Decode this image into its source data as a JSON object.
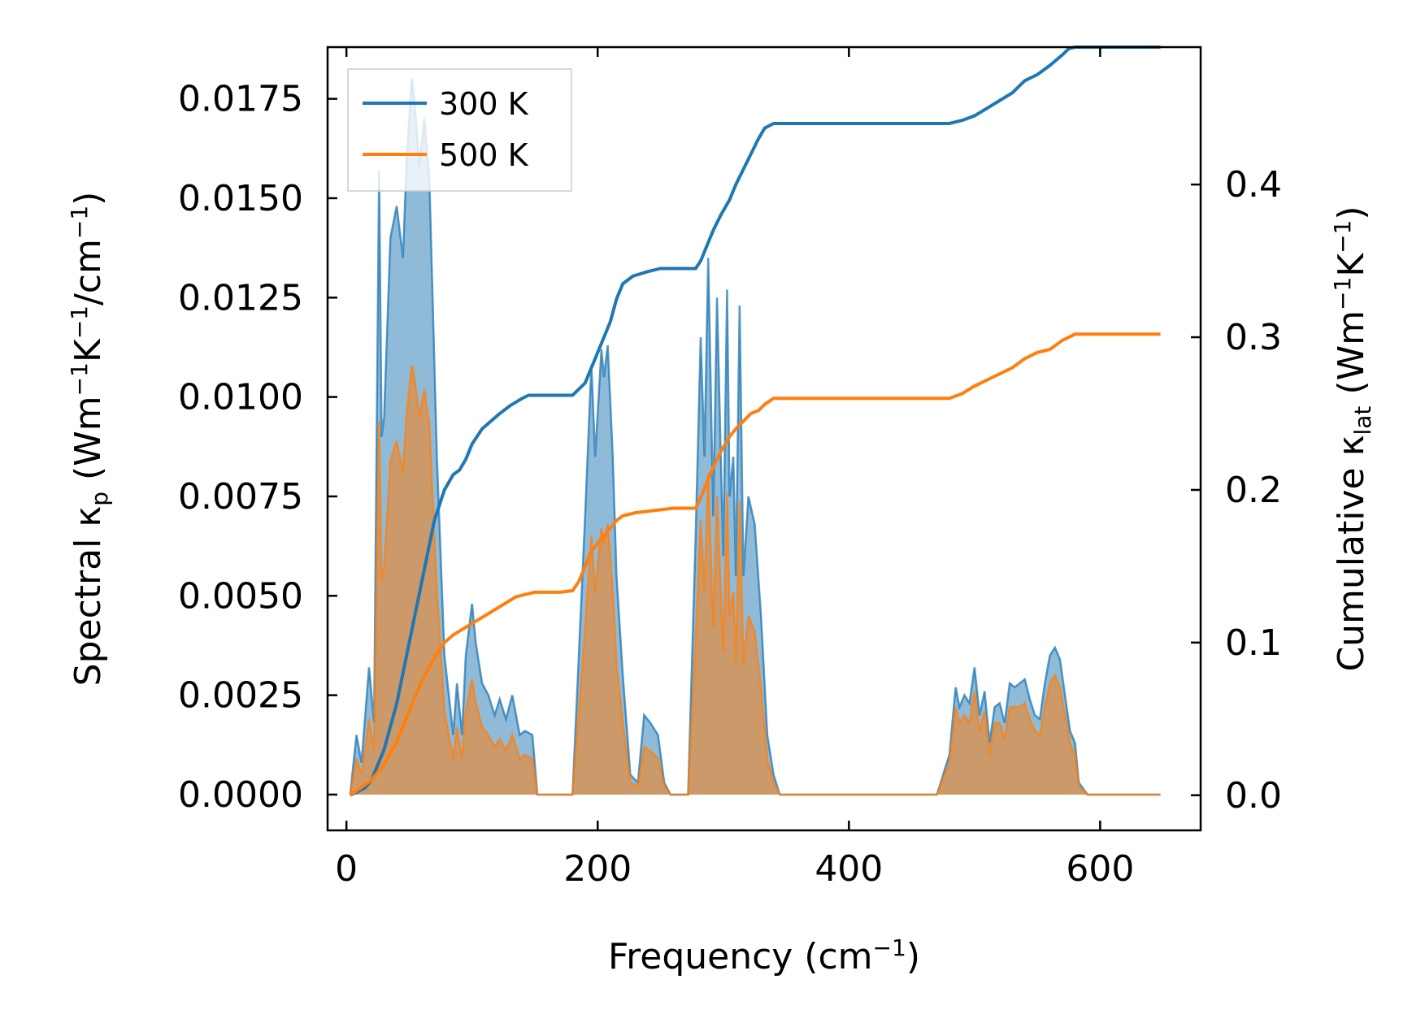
{
  "chart_data": {
    "type": "line",
    "x_axis": {
      "label": "Frequency (cm",
      "label_sup": "−1",
      "label_end": ")",
      "lim": [
        -15,
        680
      ],
      "ticks": [
        0,
        200,
        400,
        600
      ],
      "tick_labels": [
        "0",
        "200",
        "400",
        "600"
      ]
    },
    "y_left": {
      "label_parts": [
        {
          "t": "Spectral κ"
        },
        {
          "t": "p",
          "s": "sub"
        },
        {
          "t": " (Wm"
        },
        {
          "t": "−1",
          "s": "sup"
        },
        {
          "t": "K"
        },
        {
          "t": "−1",
          "s": "sup"
        },
        {
          "t": "/cm"
        },
        {
          "t": "−1",
          "s": "sup"
        },
        {
          "t": ")"
        }
      ],
      "lim": [
        -0.0009,
        0.0188
      ],
      "ticks": [
        0,
        0.0025,
        0.005,
        0.0075,
        0.01,
        0.0125,
        0.015,
        0.0175
      ],
      "tick_labels": [
        "0.0000",
        "0.0025",
        "0.0050",
        "0.0075",
        "0.0100",
        "0.0125",
        "0.0150",
        "0.0175"
      ]
    },
    "y_right": {
      "label_parts": [
        {
          "t": "Cumulative κ"
        },
        {
          "t": "lat",
          "s": "sub"
        },
        {
          "t": " (Wm"
        },
        {
          "t": "−1",
          "s": "sup"
        },
        {
          "t": "K"
        },
        {
          "t": "−1",
          "s": "sup"
        },
        {
          "t": ")"
        }
      ],
      "lim": [
        -0.023,
        0.49
      ],
      "ticks": [
        0,
        0.1,
        0.2,
        0.3,
        0.4
      ],
      "tick_labels": [
        "0.0",
        "0.1",
        "0.2",
        "0.3",
        "0.4"
      ]
    },
    "legend": {
      "position": "top-left",
      "entries": [
        "300 K",
        "500 K"
      ]
    },
    "series": [
      {
        "name": "300 K",
        "color": "#1f77b4",
        "spectral": {
          "x": [
            3,
            8,
            12,
            18,
            22,
            26,
            28,
            30,
            35,
            40,
            45,
            48,
            52,
            54,
            58,
            62,
            66,
            72,
            78,
            85,
            88,
            92,
            95,
            100,
            103,
            108,
            113,
            118,
            122,
            127,
            132,
            138,
            142,
            148,
            152,
            160,
            170,
            180,
            185,
            190,
            195,
            198,
            203,
            205,
            208,
            212,
            215,
            220,
            226,
            232,
            237,
            242,
            248,
            253,
            258,
            262,
            267,
            272,
            278,
            282,
            285,
            288,
            292,
            295,
            298,
            300,
            303,
            305,
            308,
            310,
            313,
            316,
            320,
            325,
            330,
            335,
            340,
            345,
            350,
            360,
            400,
            450,
            470,
            475,
            480,
            485,
            488,
            492,
            496,
            500,
            504,
            508,
            512,
            516,
            520,
            524,
            528,
            532,
            536,
            540,
            544,
            548,
            552,
            556,
            560,
            564,
            568,
            572,
            576,
            580,
            583,
            590,
            640,
            648
          ],
          "y": [
            0,
            0.0015,
            0.0008,
            0.0032,
            0.0018,
            0.0157,
            0.009,
            0.0095,
            0.014,
            0.0148,
            0.0135,
            0.016,
            0.018,
            0.0175,
            0.0158,
            0.017,
            0.0155,
            0.0085,
            0.0035,
            0.0015,
            0.0028,
            0.0015,
            0.0035,
            0.0048,
            0.0038,
            0.0028,
            0.0025,
            0.002,
            0.0024,
            0.0019,
            0.0025,
            0.0015,
            0.0016,
            0.0015,
            0,
            0,
            0,
            0,
            0.0035,
            0.007,
            0.0108,
            0.0085,
            0.0112,
            0.0105,
            0.0113,
            0.0085,
            0.0055,
            0.003,
            0.0005,
            0.0003,
            0.002,
            0.0018,
            0.0015,
            0.0003,
            0,
            0,
            0,
            0,
            0.0065,
            0.0115,
            0.0085,
            0.0135,
            0.007,
            0.0125,
            0.0085,
            0.006,
            0.0127,
            0.0075,
            0.0085,
            0.0055,
            0.0123,
            0.0055,
            0.0075,
            0.0068,
            0.0045,
            0.0015,
            0.0005,
            0,
            0,
            0,
            0,
            0,
            0,
            0.0005,
            0.001,
            0.0027,
            0.0022,
            0.0025,
            0.0023,
            0.0032,
            0.002,
            0.0026,
            0.0013,
            0.0022,
            0.0023,
            0.0018,
            0.0028,
            0.0027,
            0.0028,
            0.0029,
            0.0024,
            0.002,
            0.0019,
            0.0028,
            0.0035,
            0.0037,
            0.0034,
            0.0025,
            0.0016,
            0.0013,
            0.0003,
            0,
            0,
            0
          ]
        },
        "cumulative": {
          "x": [
            3,
            15,
            20,
            30,
            40,
            50,
            60,
            70,
            78,
            85,
            90,
            95,
            100,
            108,
            115,
            122,
            130,
            140,
            145,
            150,
            155,
            160,
            170,
            180,
            190,
            195,
            200,
            205,
            210,
            215,
            220,
            228,
            240,
            250,
            260,
            270,
            278,
            282,
            287,
            292,
            298,
            305,
            310,
            316,
            322,
            328,
            333,
            340,
            350,
            400,
            480,
            490,
            500,
            510,
            520,
            530,
            540,
            550,
            560,
            570,
            575,
            580,
            600,
            648
          ],
          "y": [
            0,
            0.005,
            0.01,
            0.03,
            0.06,
            0.1,
            0.14,
            0.18,
            0.2,
            0.21,
            0.213,
            0.22,
            0.23,
            0.24,
            0.245,
            0.25,
            0.255,
            0.26,
            0.262,
            0.262,
            0.262,
            0.262,
            0.262,
            0.262,
            0.27,
            0.28,
            0.29,
            0.3,
            0.31,
            0.325,
            0.335,
            0.34,
            0.343,
            0.345,
            0.345,
            0.345,
            0.345,
            0.35,
            0.36,
            0.37,
            0.38,
            0.39,
            0.4,
            0.41,
            0.42,
            0.43,
            0.437,
            0.44,
            0.44,
            0.44,
            0.44,
            0.442,
            0.445,
            0.45,
            0.455,
            0.46,
            0.468,
            0.472,
            0.478,
            0.485,
            0.489,
            0.49,
            0.49,
            0.49
          ]
        }
      },
      {
        "name": "500 K",
        "color": "#ff7f0e",
        "spectral": {
          "x": [
            3,
            8,
            12,
            18,
            22,
            26,
            28,
            30,
            35,
            40,
            45,
            48,
            52,
            54,
            58,
            62,
            66,
            72,
            78,
            85,
            88,
            92,
            95,
            100,
            103,
            108,
            113,
            118,
            122,
            127,
            132,
            138,
            142,
            148,
            152,
            160,
            170,
            180,
            185,
            190,
            195,
            198,
            203,
            205,
            208,
            212,
            215,
            220,
            226,
            232,
            237,
            242,
            248,
            253,
            258,
            262,
            267,
            272,
            278,
            282,
            285,
            288,
            292,
            295,
            298,
            300,
            303,
            305,
            308,
            310,
            313,
            316,
            320,
            325,
            330,
            335,
            340,
            345,
            350,
            360,
            400,
            450,
            470,
            475,
            480,
            485,
            488,
            492,
            496,
            500,
            504,
            508,
            512,
            516,
            520,
            524,
            528,
            532,
            536,
            540,
            544,
            548,
            552,
            556,
            560,
            564,
            568,
            572,
            576,
            580,
            583,
            590,
            640,
            648
          ],
          "y": [
            0,
            0.0009,
            0.0005,
            0.0019,
            0.0011,
            0.0094,
            0.0054,
            0.0057,
            0.0084,
            0.0089,
            0.0081,
            0.0096,
            0.0108,
            0.0105,
            0.0095,
            0.0102,
            0.0093,
            0.0051,
            0.0021,
            0.0009,
            0.0017,
            0.0009,
            0.0021,
            0.0029,
            0.0023,
            0.0017,
            0.0015,
            0.0012,
            0.0014,
            0.0011,
            0.0015,
            0.0009,
            0.001,
            0.0009,
            0,
            0,
            0,
            0,
            0.0021,
            0.0042,
            0.0065,
            0.0051,
            0.0067,
            0.0063,
            0.0068,
            0.0051,
            0.0033,
            0.0018,
            0.0003,
            0.0002,
            0.0012,
            0.0011,
            0.0009,
            0.0002,
            0,
            0,
            0,
            0,
            0.0039,
            0.0069,
            0.0051,
            0.0081,
            0.0042,
            0.0075,
            0.0051,
            0.0036,
            0.0076,
            0.0045,
            0.0051,
            0.0033,
            0.0074,
            0.0033,
            0.0045,
            0.0041,
            0.0027,
            0.0009,
            0.0003,
            0,
            0,
            0,
            0,
            0,
            0,
            0.0004,
            0.0008,
            0.0022,
            0.0018,
            0.002,
            0.0018,
            0.0026,
            0.0016,
            0.0021,
            0.001,
            0.0018,
            0.0018,
            0.0014,
            0.0022,
            0.0022,
            0.0022,
            0.0023,
            0.0019,
            0.0016,
            0.0015,
            0.0022,
            0.0028,
            0.003,
            0.0027,
            0.002,
            0.0013,
            0.001,
            0.0002,
            0,
            0,
            0
          ]
        },
        "cumulative": {
          "x": [
            3,
            20,
            30,
            40,
            50,
            60,
            70,
            78,
            85,
            95,
            105,
            115,
            125,
            135,
            145,
            150,
            170,
            180,
            185,
            190,
            195,
            200,
            205,
            210,
            215,
            220,
            230,
            240,
            250,
            260,
            270,
            278,
            282,
            287,
            292,
            298,
            305,
            310,
            316,
            322,
            328,
            333,
            340,
            350,
            400,
            480,
            490,
            500,
            510,
            520,
            530,
            540,
            550,
            560,
            570,
            575,
            580,
            600,
            648
          ],
          "y": [
            0,
            0.01,
            0.02,
            0.035,
            0.055,
            0.075,
            0.09,
            0.1,
            0.105,
            0.11,
            0.115,
            0.12,
            0.125,
            0.13,
            0.132,
            0.133,
            0.133,
            0.134,
            0.14,
            0.15,
            0.16,
            0.165,
            0.17,
            0.175,
            0.18,
            0.183,
            0.185,
            0.186,
            0.187,
            0.188,
            0.188,
            0.188,
            0.195,
            0.205,
            0.215,
            0.225,
            0.235,
            0.24,
            0.245,
            0.25,
            0.252,
            0.256,
            0.26,
            0.26,
            0.26,
            0.26,
            0.263,
            0.268,
            0.272,
            0.276,
            0.28,
            0.286,
            0.29,
            0.292,
            0.298,
            0.3,
            0.302,
            0.302,
            0.302
          ]
        }
      }
    ]
  }
}
